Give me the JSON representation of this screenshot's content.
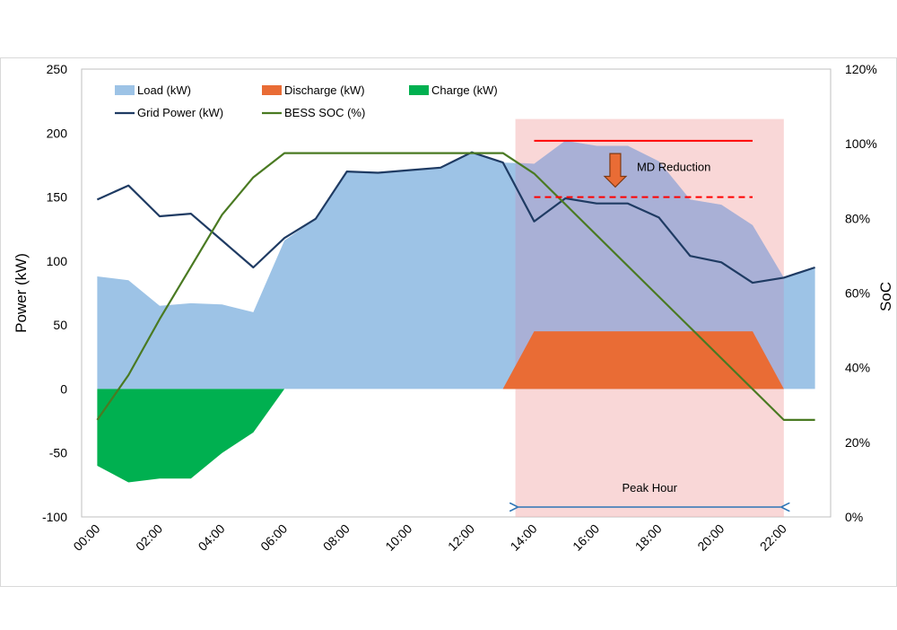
{
  "chart_data": {
    "type": "area",
    "title": "",
    "ylabel": "Power (kW)",
    "y2label": "SoC",
    "ylim": [
      -100,
      250
    ],
    "y2lim": [
      0,
      120
    ],
    "yticks": [
      "250",
      "200",
      "150",
      "100",
      "50",
      "0",
      "-50",
      "-100"
    ],
    "y2ticks": [
      "120%",
      "100%",
      "80%",
      "60%",
      "40%",
      "20%",
      "0%"
    ],
    "xticks": [
      "00:00",
      "02:00",
      "04:00",
      "06:00",
      "08:00",
      "10:00",
      "12:00",
      "14:00",
      "16:00",
      "18:00",
      "20:00",
      "22:00"
    ],
    "x_hours": [
      0,
      2,
      4,
      6,
      8,
      10,
      12,
      14,
      16,
      18,
      20,
      22
    ],
    "legend": {
      "placement": "top-left",
      "load": "Load (kW)",
      "discharge": "Discharge (kW)",
      "charge": "Charge (kW)",
      "grid": "Grid Power (kW)",
      "soc": "BESS SOC (%)"
    },
    "series": {
      "load": {
        "name": "Load (kW)",
        "color": "#9dc3e6",
        "points": [
          [
            0,
            88
          ],
          [
            1,
            85
          ],
          [
            2,
            65
          ],
          [
            3,
            67
          ],
          [
            4,
            66
          ],
          [
            5,
            60
          ],
          [
            6,
            116
          ],
          [
            7,
            133
          ],
          [
            8,
            170
          ],
          [
            9,
            169
          ],
          [
            10,
            171
          ],
          [
            11,
            173
          ],
          [
            12,
            185
          ],
          [
            13,
            177
          ],
          [
            14,
            176
          ],
          [
            15,
            194
          ],
          [
            16,
            190
          ],
          [
            17,
            190
          ],
          [
            18,
            178
          ],
          [
            19,
            148
          ],
          [
            20,
            144
          ],
          [
            21,
            128
          ],
          [
            22,
            87
          ],
          [
            23,
            95
          ]
        ]
      },
      "discharge": {
        "name": "Discharge (kW)",
        "color": "#e96c35",
        "points": [
          [
            13,
            0
          ],
          [
            14,
            45
          ],
          [
            21,
            45
          ],
          [
            22,
            0
          ]
        ]
      },
      "charge": {
        "name": "Charge (kW)",
        "color": "#00b050",
        "points": [
          [
            0,
            0
          ],
          [
            0,
            -60
          ],
          [
            1,
            -73
          ],
          [
            2,
            -70
          ],
          [
            3,
            -70
          ],
          [
            4,
            -50
          ],
          [
            5,
            -34
          ],
          [
            6,
            0
          ]
        ]
      },
      "grid": {
        "name": "Grid Power (kW)",
        "color": "#1f3b63",
        "points": [
          [
            0,
            148
          ],
          [
            1,
            159
          ],
          [
            2,
            135
          ],
          [
            3,
            137
          ],
          [
            4,
            116
          ],
          [
            5,
            95
          ],
          [
            6,
            118
          ],
          [
            7,
            133
          ],
          [
            8,
            170
          ],
          [
            9,
            169
          ],
          [
            10,
            171
          ],
          [
            11,
            173
          ],
          [
            12,
            185
          ],
          [
            13,
            177
          ],
          [
            14,
            131
          ],
          [
            15,
            149
          ],
          [
            16,
            145
          ],
          [
            17,
            145
          ],
          [
            18,
            134
          ],
          [
            19,
            104
          ],
          [
            20,
            99
          ],
          [
            21,
            83
          ],
          [
            22,
            87
          ],
          [
            23,
            95
          ]
        ]
      },
      "soc": {
        "name": "BESS SOC (%)",
        "color": "#4a7a22",
        "points": [
          [
            0,
            26
          ],
          [
            1,
            38
          ],
          [
            2,
            53
          ],
          [
            3,
            67
          ],
          [
            4,
            81
          ],
          [
            5,
            91
          ],
          [
            6,
            97.5
          ],
          [
            13,
            97.5
          ],
          [
            14,
            92
          ],
          [
            22,
            26
          ],
          [
            23,
            26
          ]
        ]
      }
    },
    "annotations": {
      "peak_hour": {
        "label": "Peak Hour",
        "start": 13.4,
        "end": 22,
        "fill": "#f4b6b6"
      },
      "md_reduction": {
        "label": "MD Reduction",
        "from": 194,
        "to": 150,
        "start": 14,
        "end": 21,
        "color": "#ff0000",
        "arrow_color": "#e96c35"
      }
    }
  }
}
